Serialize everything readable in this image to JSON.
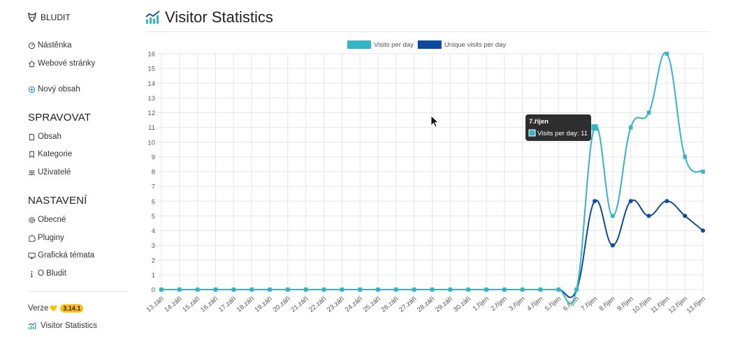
{
  "brand": {
    "name": "BLUDIT"
  },
  "page": {
    "title": "Visitor Statistics"
  },
  "sidebar": {
    "top_items": [
      {
        "label": "Nástěnka",
        "icon": "dashboard-icon"
      },
      {
        "label": "Webové stránky",
        "icon": "home-icon"
      },
      {
        "label": "Nový obsah",
        "icon": "plus-circle-icon"
      }
    ],
    "section_manage": "SPRAVOVAT",
    "manage_items": [
      {
        "label": "Obsah",
        "icon": "file-icon"
      },
      {
        "label": "Kategorie",
        "icon": "bookmark-icon"
      },
      {
        "label": "Uživatelé",
        "icon": "users-icon"
      }
    ],
    "section_settings": "NASTAVENÍ",
    "settings_items": [
      {
        "label": "Obecné",
        "icon": "gear-icon"
      },
      {
        "label": "Pluginy",
        "icon": "puzzle-icon"
      },
      {
        "label": "Grafická témata",
        "icon": "monitor-icon"
      },
      {
        "label": "O Bludit",
        "icon": "info-icon"
      }
    ],
    "version_label": "Verze",
    "version_number": "3.14.1",
    "plugin_item": {
      "label": "Visitor Statistics",
      "icon": "stats-icon"
    }
  },
  "chart_data": {
    "type": "line",
    "legend_position": "top-center",
    "grid": true,
    "ylim": [
      0,
      16
    ],
    "categories": [
      "13.září",
      "14.září",
      "15.září",
      "16.září",
      "17.září",
      "18.září",
      "19.září",
      "20.září",
      "21.září",
      "22.září",
      "23.září",
      "24.září",
      "25.září",
      "26.září",
      "27.září",
      "28.září",
      "29.září",
      "30.září",
      "1.říjen",
      "2.říjen",
      "3.říjen",
      "4.říjen",
      "5.říjen",
      "6.říjen",
      "7.říjen",
      "8.říjen",
      "9.říjen",
      "10.říjen",
      "11.říjen",
      "12.říjen",
      "13.říjen"
    ],
    "series": [
      {
        "name": "Visits per day",
        "color": "#33b5c8",
        "values": [
          0,
          0,
          0,
          0,
          0,
          0,
          0,
          0,
          0,
          0,
          0,
          0,
          0,
          0,
          0,
          0,
          0,
          0,
          0,
          0,
          0,
          0,
          0,
          0,
          11,
          5,
          11,
          12,
          16,
          9,
          8
        ]
      },
      {
        "name": "Unique visits per day",
        "color": "#0d4a9c",
        "values": [
          0,
          0,
          0,
          0,
          0,
          0,
          0,
          0,
          0,
          0,
          0,
          0,
          0,
          0,
          0,
          0,
          0,
          0,
          0,
          0,
          0,
          0,
          0,
          0,
          6,
          3,
          6,
          5,
          6,
          5,
          4
        ]
      }
    ],
    "tooltip": {
      "title": "7.říjen",
      "label": "Visits per day: 11"
    }
  }
}
